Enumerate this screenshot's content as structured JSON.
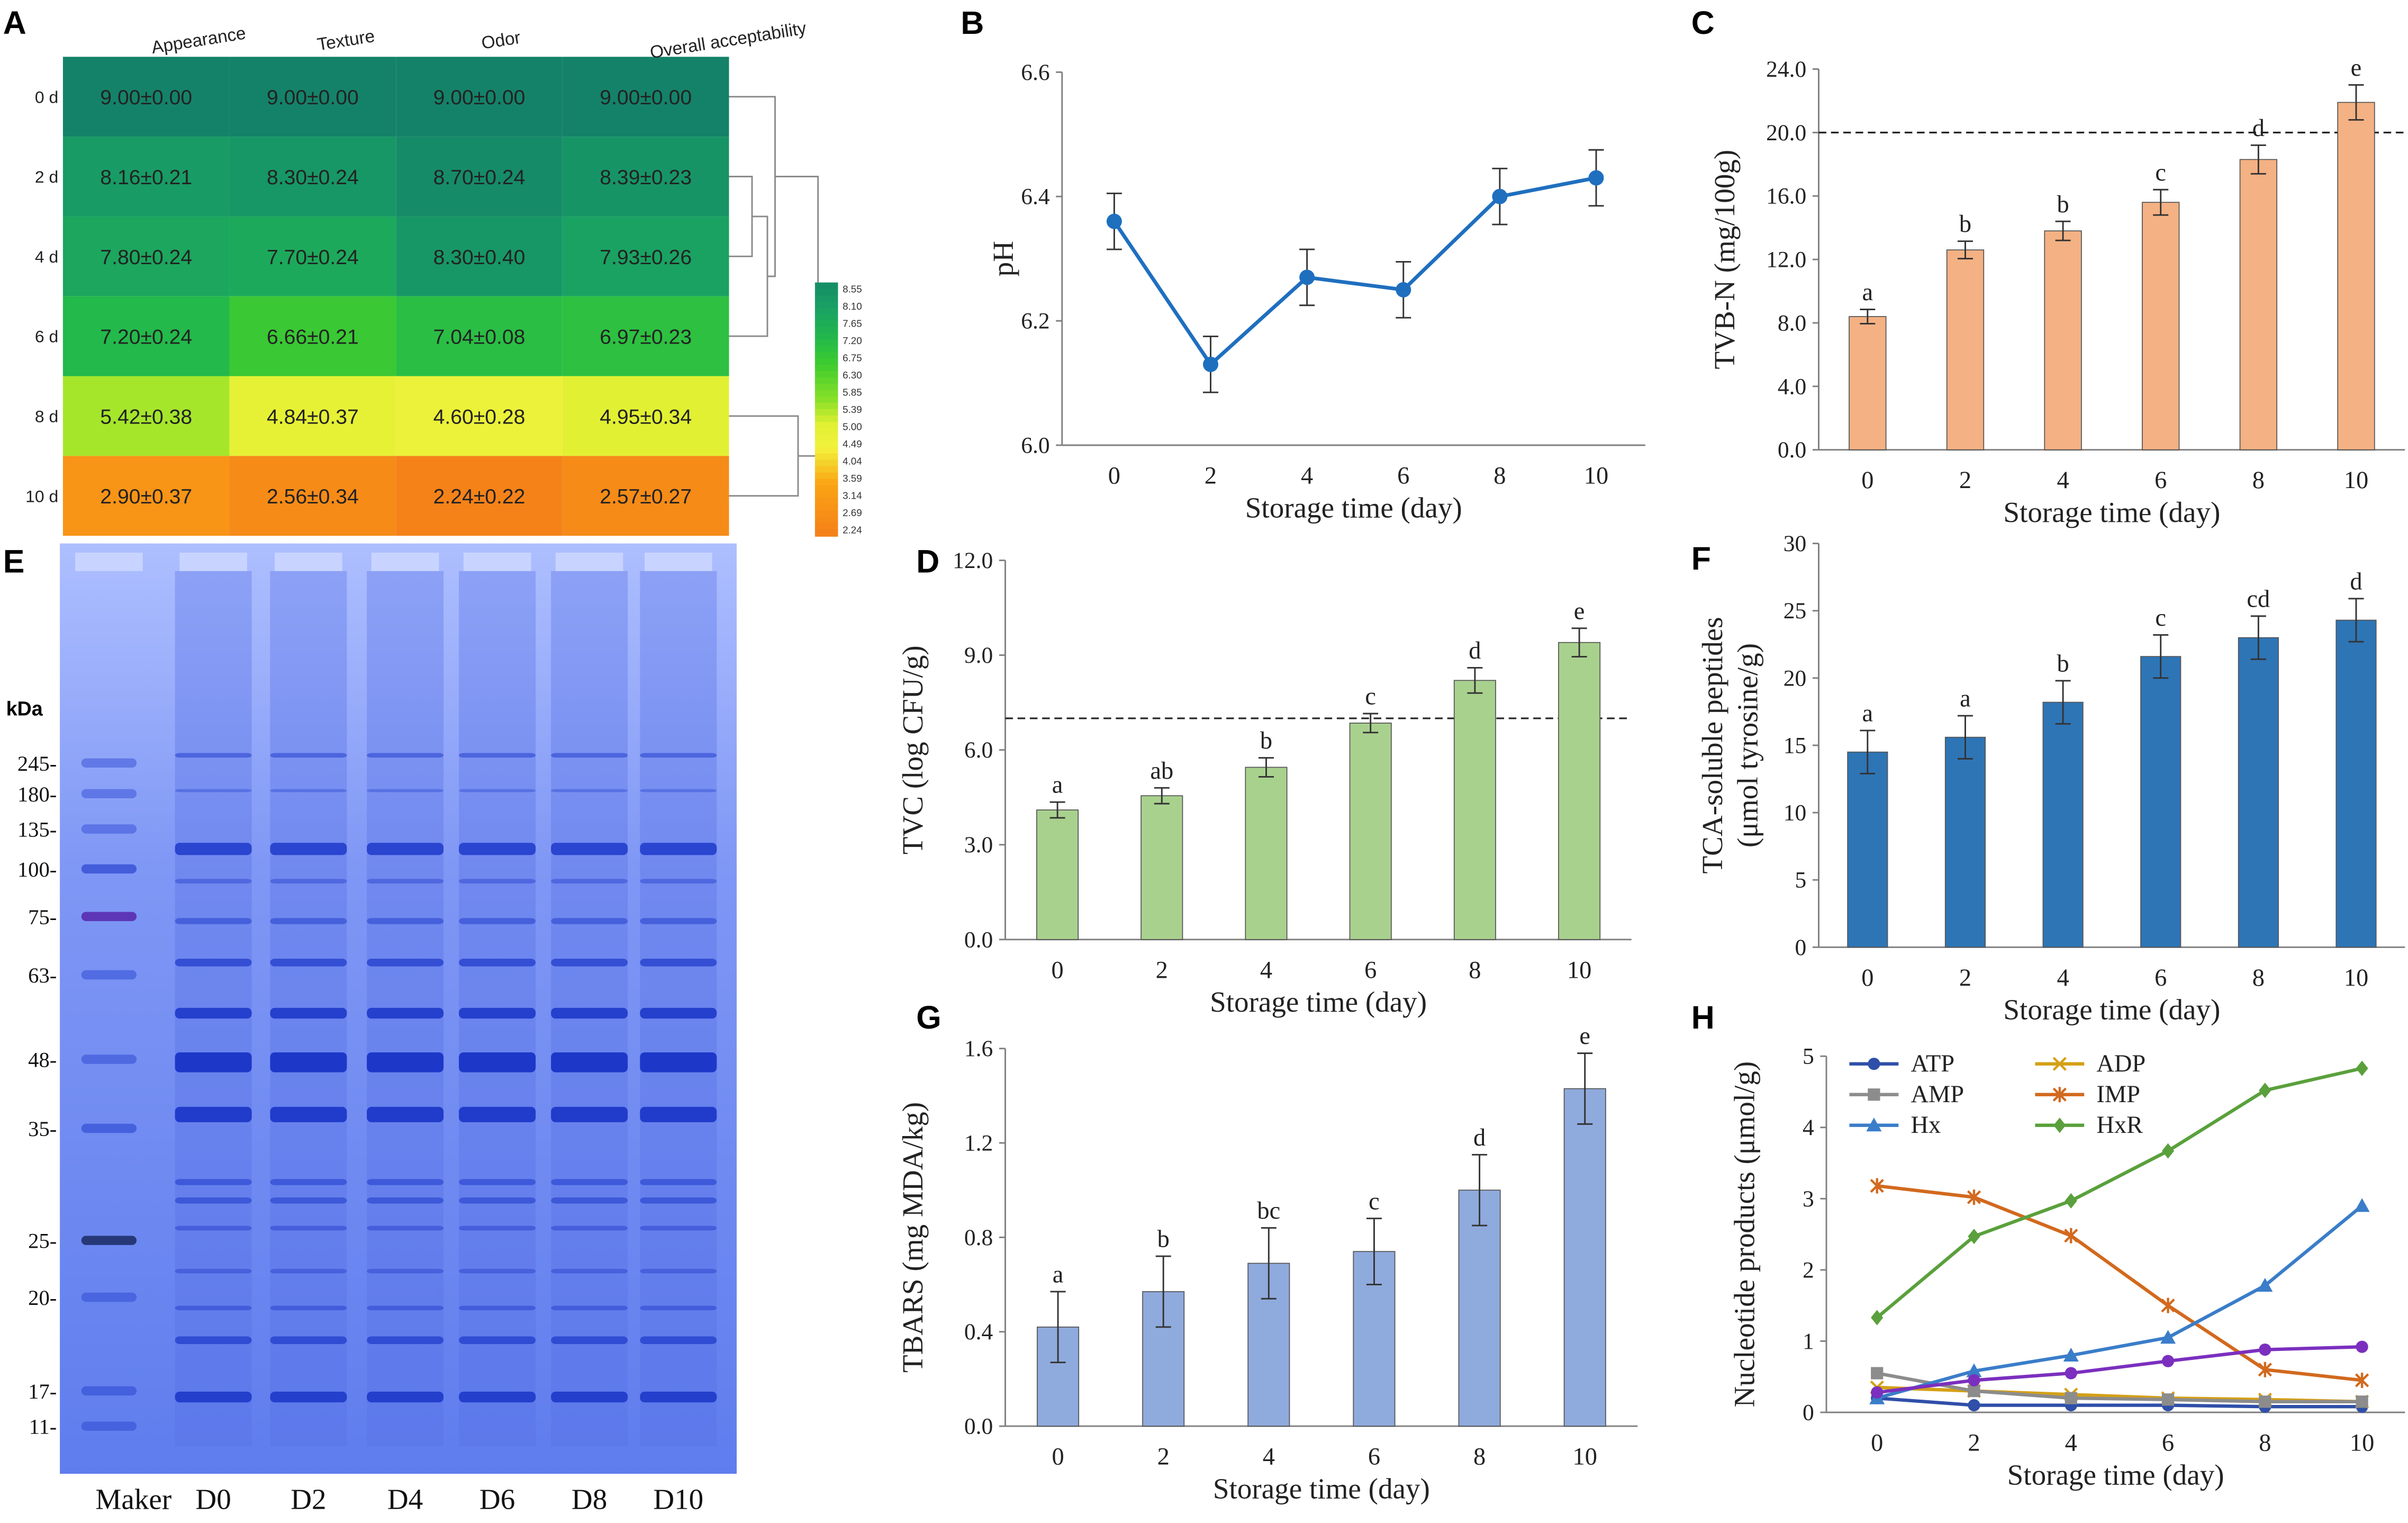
{
  "panel_letters": [
    "A",
    "B",
    "C",
    "D",
    "E",
    "F",
    "G",
    "H"
  ],
  "chart_data": [
    {
      "panel": "A",
      "type": "heatmap",
      "columns": [
        "Appearance",
        "Texture",
        "Odor",
        "Overall acceptability"
      ],
      "rows": [
        "0 d",
        "2 d",
        "4 d",
        "6 d",
        "8 d",
        "10 d"
      ],
      "values": [
        [
          9.0,
          9.0,
          9.0,
          9.0
        ],
        [
          8.16,
          8.3,
          8.7,
          8.39
        ],
        [
          7.8,
          7.7,
          8.3,
          7.93
        ],
        [
          7.2,
          6.66,
          7.04,
          6.97
        ],
        [
          5.42,
          4.84,
          4.6,
          4.95
        ],
        [
          2.9,
          2.56,
          2.24,
          2.57
        ]
      ],
      "labels": [
        [
          "9.00±0.00",
          "9.00±0.00",
          "9.00±0.00",
          "9.00±0.00"
        ],
        [
          "8.16±0.21",
          "8.30±0.24",
          "8.70±0.24",
          "8.39±0.23"
        ],
        [
          "7.80±0.24",
          "7.70±0.24",
          "8.30±0.40",
          "7.93±0.26"
        ],
        [
          "7.20±0.24",
          "6.66±0.21",
          "7.04±0.08",
          "6.97±0.23"
        ],
        [
          "5.42±0.38",
          "4.84±0.37",
          "4.60±0.28",
          "4.95±0.34"
        ],
        [
          "2.90±0.37",
          "2.56±0.34",
          "2.24±0.22",
          "2.57±0.27"
        ]
      ],
      "colorbar_ticks": [
        "8.55",
        "8.10",
        "7.65",
        "7.20",
        "6.75",
        "6.30",
        "5.85",
        "5.39",
        "5.00",
        "4.49",
        "4.04",
        "3.59",
        "3.14",
        "2.69",
        "2.24"
      ],
      "colors": {
        "high": "#17886a",
        "mid_high": "#1fb84f",
        "mid": "#7ee022",
        "low": "#f2f23a",
        "lowest": "#f5841a"
      }
    },
    {
      "panel": "B",
      "type": "line",
      "x": [
        0,
        2,
        4,
        6,
        8,
        10
      ],
      "values": [
        6.36,
        6.13,
        6.27,
        6.25,
        6.4,
        6.43
      ],
      "errors": [
        0.045,
        0.045,
        0.045,
        0.045,
        0.045,
        0.045
      ],
      "ylim": [
        6.0,
        6.6
      ],
      "yticks": [
        "6.0",
        "6.2",
        "6.4",
        "6.6"
      ],
      "ylabel": "pH",
      "xlabel": "Storage time (day)",
      "color": "#1f6fbf"
    },
    {
      "panel": "C",
      "type": "bar",
      "x": [
        0,
        2,
        4,
        6,
        8,
        10
      ],
      "values": [
        8.4,
        12.6,
        13.8,
        15.6,
        18.3,
        21.9
      ],
      "errors": [
        0.45,
        0.55,
        0.6,
        0.8,
        0.9,
        1.1
      ],
      "letters": [
        "a",
        "b",
        "b",
        "c",
        "d",
        "e"
      ],
      "ylim": [
        0,
        24
      ],
      "yticks": [
        "0.0",
        "4.0",
        "8.0",
        "12.0",
        "16.0",
        "20.0",
        "24.0"
      ],
      "reference_line": 20,
      "ylabel": "TVB-N (mg/100g)",
      "xlabel": "Storage time (day)",
      "color": "#f4b183"
    },
    {
      "panel": "D",
      "type": "bar",
      "x": [
        0,
        2,
        4,
        6,
        8,
        10
      ],
      "values": [
        4.1,
        4.55,
        5.45,
        6.85,
        8.2,
        9.4
      ],
      "errors": [
        0.25,
        0.25,
        0.3,
        0.3,
        0.4,
        0.45
      ],
      "letters": [
        "a",
        "ab",
        "b",
        "c",
        "d",
        "e"
      ],
      "ylim": [
        0,
        12
      ],
      "yticks": [
        "0.0",
        "3.0",
        "6.0",
        "9.0",
        "12.0"
      ],
      "reference_line": 7,
      "ylabel": "TVC (log CFU/g)",
      "xlabel": "Storage time (day)",
      "color": "#a9d18e"
    },
    {
      "panel": "E",
      "type": "gel",
      "ylabel": "kDa",
      "markers": [
        "245-",
        "180-",
        "135-",
        "100-",
        "75-",
        "63-",
        "48-",
        "35-",
        "25-",
        "20-",
        "17-",
        "11-"
      ],
      "lanes": [
        "Maker",
        "D0",
        "D2",
        "D4",
        "D6",
        "D8",
        "D10"
      ]
    },
    {
      "panel": "F",
      "type": "bar",
      "x": [
        0,
        2,
        4,
        6,
        8,
        10
      ],
      "values": [
        14.5,
        15.6,
        18.2,
        21.6,
        23.0,
        24.3
      ],
      "errors": [
        1.6,
        1.6,
        1.6,
        1.6,
        1.6,
        1.6
      ],
      "letters": [
        "a",
        "a",
        "b",
        "c",
        "cd",
        "d"
      ],
      "ylim": [
        0,
        30
      ],
      "yticks": [
        "0",
        "5",
        "10",
        "15",
        "20",
        "25",
        "30"
      ],
      "ylabel_line1": "TCA-soluble peptides",
      "ylabel_line2": "(μmol tyrosine/g)",
      "xlabel": "Storage time (day)",
      "color": "#2e75b6"
    },
    {
      "panel": "G",
      "type": "bar",
      "x": [
        0,
        2,
        4,
        6,
        8,
        10
      ],
      "values": [
        0.42,
        0.57,
        0.69,
        0.74,
        1.0,
        1.43
      ],
      "errors": [
        0.15,
        0.15,
        0.15,
        0.14,
        0.15,
        0.15
      ],
      "letters": [
        "a",
        "b",
        "bc",
        "c",
        "d",
        "e"
      ],
      "ylim": [
        0,
        1.6
      ],
      "yticks": [
        "0.0",
        "0.4",
        "0.8",
        "1.2",
        "1.6"
      ],
      "ylabel": "TBARS (mg MDA/kg)",
      "xlabel": "Storage time (day)",
      "color": "#8faadc"
    },
    {
      "panel": "H",
      "type": "line",
      "x": [
        0,
        2,
        4,
        6,
        8,
        10
      ],
      "ylim": [
        0,
        5
      ],
      "yticks": [
        "0",
        "1",
        "2",
        "3",
        "4",
        "5"
      ],
      "ylabel": "Nucleotide products (μmol/g)",
      "xlabel": "Storage time (day)",
      "series": [
        {
          "name": "ATP",
          "values": [
            0.2,
            0.1,
            0.1,
            0.1,
            0.08,
            0.08
          ],
          "color": "#2f4fa8",
          "marker": "circle"
        },
        {
          "name": "ADP",
          "values": [
            0.35,
            0.3,
            0.25,
            0.2,
            0.18,
            0.15
          ],
          "color": "#d4a017",
          "marker": "x"
        },
        {
          "name": "AMP",
          "values": [
            0.55,
            0.3,
            0.2,
            0.18,
            0.15,
            0.15
          ],
          "color": "#8c8c8c",
          "marker": "square"
        },
        {
          "name": "IMP",
          "values": [
            3.18,
            3.02,
            2.48,
            1.5,
            0.6,
            0.45
          ],
          "color": "#d2691e",
          "marker": "star"
        },
        {
          "name": "Hx",
          "values": [
            0.2,
            0.58,
            0.8,
            1.05,
            1.78,
            2.9
          ],
          "color": "#3a7dc9",
          "marker": "triangle"
        },
        {
          "name": "HxR",
          "values": [
            1.33,
            2.47,
            2.97,
            3.67,
            4.52,
            4.83
          ],
          "color": "#5aa03c",
          "marker": "diamond"
        },
        {
          "name": "",
          "values": [
            0.28,
            0.45,
            0.55,
            0.72,
            0.88,
            0.92
          ],
          "color": "#7b2fbe",
          "marker": "circle"
        }
      ]
    }
  ]
}
